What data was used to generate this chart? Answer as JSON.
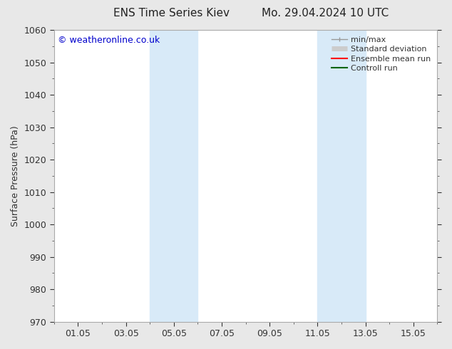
{
  "title_left": "ENS Time Series Kiev",
  "title_right": "Mo. 29.04.2024 10 UTC",
  "ylabel": "Surface Pressure (hPa)",
  "ylim": [
    970,
    1060
  ],
  "yticks": [
    970,
    980,
    990,
    1000,
    1010,
    1020,
    1030,
    1040,
    1050,
    1060
  ],
  "xtick_labels": [
    "01.05",
    "03.05",
    "05.05",
    "07.05",
    "09.05",
    "11.05",
    "13.05",
    "15.05"
  ],
  "xtick_positions": [
    1,
    3,
    5,
    7,
    9,
    11,
    13,
    15
  ],
  "xmin": 0,
  "xmax": 16,
  "shaded_bands": [
    {
      "xmin": 4.0,
      "xmax": 6.0
    },
    {
      "xmin": 11.0,
      "xmax": 13.0
    }
  ],
  "shade_color": "#d8eaf8",
  "background_color": "#e8e8e8",
  "plot_bg_color": "#ffffff",
  "watermark_text": "© weatheronline.co.uk",
  "watermark_color": "#0000cc",
  "legend_items": [
    {
      "label": "min/max",
      "color": "#999999",
      "lw": 1.0
    },
    {
      "label": "Standard deviation",
      "color": "#cccccc",
      "lw": 5
    },
    {
      "label": "Ensemble mean run",
      "color": "#ff0000",
      "lw": 1.5
    },
    {
      "label": "Controll run",
      "color": "#006400",
      "lw": 1.5
    }
  ],
  "border_color": "#aaaaaa",
  "tick_color": "#333333",
  "label_color": "#333333",
  "title_color": "#222222",
  "font_size": 9,
  "ylabel_fontsize": 9,
  "title_font_size": 11,
  "legend_fontsize": 8,
  "watermark_fontsize": 9
}
